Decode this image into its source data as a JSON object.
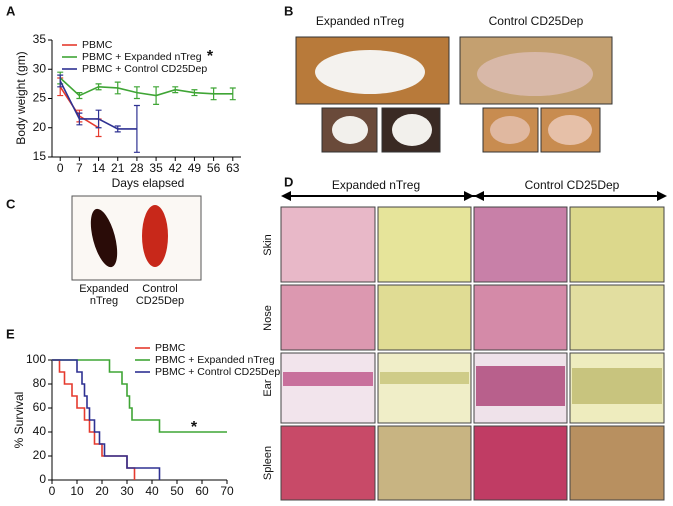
{
  "figure": {
    "panel_labels": [
      "A",
      "B",
      "C",
      "D",
      "E"
    ],
    "B": {
      "left": "Expanded nTreg",
      "right": "Control CD25Dep"
    },
    "C": {
      "left": [
        "Expanded",
        "nTreg"
      ],
      "right": [
        "Control",
        "CD25Dep"
      ]
    },
    "D": {
      "left": "Expanded nTreg",
      "right": "Control CD25Dep",
      "rows": [
        "Skin",
        "Nose",
        "Ear",
        "Spleen"
      ]
    }
  },
  "chart_data": [
    {
      "type": "line",
      "xlabel": "Days elapsed",
      "ylabel": "Body weight (gm)",
      "xlim": [
        -3,
        66
      ],
      "ylim": [
        15,
        35
      ],
      "xticks": [
        0,
        7,
        14,
        21,
        28,
        35,
        42,
        49,
        56,
        63
      ],
      "yticks": [
        15,
        20,
        25,
        30,
        35
      ],
      "annotations": [
        "*"
      ],
      "series": [
        {
          "name": "PBMC",
          "color": "#e53a2e",
          "x": [
            0,
            7,
            14
          ],
          "values": [
            27,
            22,
            20
          ],
          "errors": [
            1.5,
            1,
            1.5
          ]
        },
        {
          "name": "PBMC + Expanded nTreg",
          "color": "#3fa535",
          "x": [
            0,
            7,
            14,
            21,
            28,
            35,
            42,
            49,
            56,
            63
          ],
          "values": [
            28.5,
            25.5,
            27,
            26.8,
            26,
            25.5,
            26.5,
            26,
            25.8,
            25.8
          ],
          "errors": [
            1,
            0.5,
            0.5,
            1,
            1,
            1.5,
            0.5,
            0.5,
            1,
            1
          ]
        },
        {
          "name": "PBMC + Control CD25Dep",
          "color": "#2e3192",
          "x": [
            0,
            7,
            14,
            21,
            28
          ],
          "values": [
            28,
            21.5,
            21.5,
            19.8,
            19.8
          ],
          "errors": [
            1,
            1,
            1.5,
            0.5,
            4
          ]
        }
      ]
    },
    {
      "type": "step",
      "ylabel": "% Survival",
      "xlim": [
        0,
        70
      ],
      "ylim": [
        0,
        100
      ],
      "xticks": [
        0,
        10,
        20,
        30,
        40,
        50,
        60,
        70
      ],
      "yticks": [
        0,
        20,
        40,
        60,
        80,
        100
      ],
      "annotations": [
        "*"
      ],
      "series": [
        {
          "name": "PBMC",
          "color": "#e53a2e",
          "x": [
            0,
            3,
            3,
            5,
            5,
            8,
            8,
            10,
            10,
            13,
            13,
            15,
            15,
            17,
            17,
            20,
            20,
            30,
            30,
            33,
            33
          ],
          "values": [
            100,
            100,
            90,
            90,
            80,
            80,
            70,
            70,
            60,
            60,
            50,
            50,
            40,
            40,
            30,
            30,
            20,
            20,
            10,
            10,
            0
          ]
        },
        {
          "name": "PBMC + Expanded nTreg",
          "color": "#3fa535",
          "x": [
            0,
            23,
            23,
            28,
            28,
            30,
            30,
            31,
            31,
            32,
            32,
            43,
            43,
            70
          ],
          "values": [
            100,
            100,
            90,
            90,
            80,
            80,
            70,
            70,
            60,
            60,
            50,
            50,
            40,
            40
          ]
        },
        {
          "name": "PBMC + Control CD25Dep",
          "color": "#2e3192",
          "x": [
            0,
            10,
            10,
            12,
            12,
            13,
            13,
            14,
            14,
            15,
            15,
            17,
            17,
            19,
            19,
            21,
            21,
            30,
            30,
            43,
            43
          ],
          "values": [
            100,
            100,
            90,
            90,
            80,
            80,
            70,
            70,
            60,
            60,
            50,
            50,
            40,
            40,
            30,
            30,
            20,
            20,
            10,
            10,
            0
          ]
        }
      ]
    }
  ]
}
